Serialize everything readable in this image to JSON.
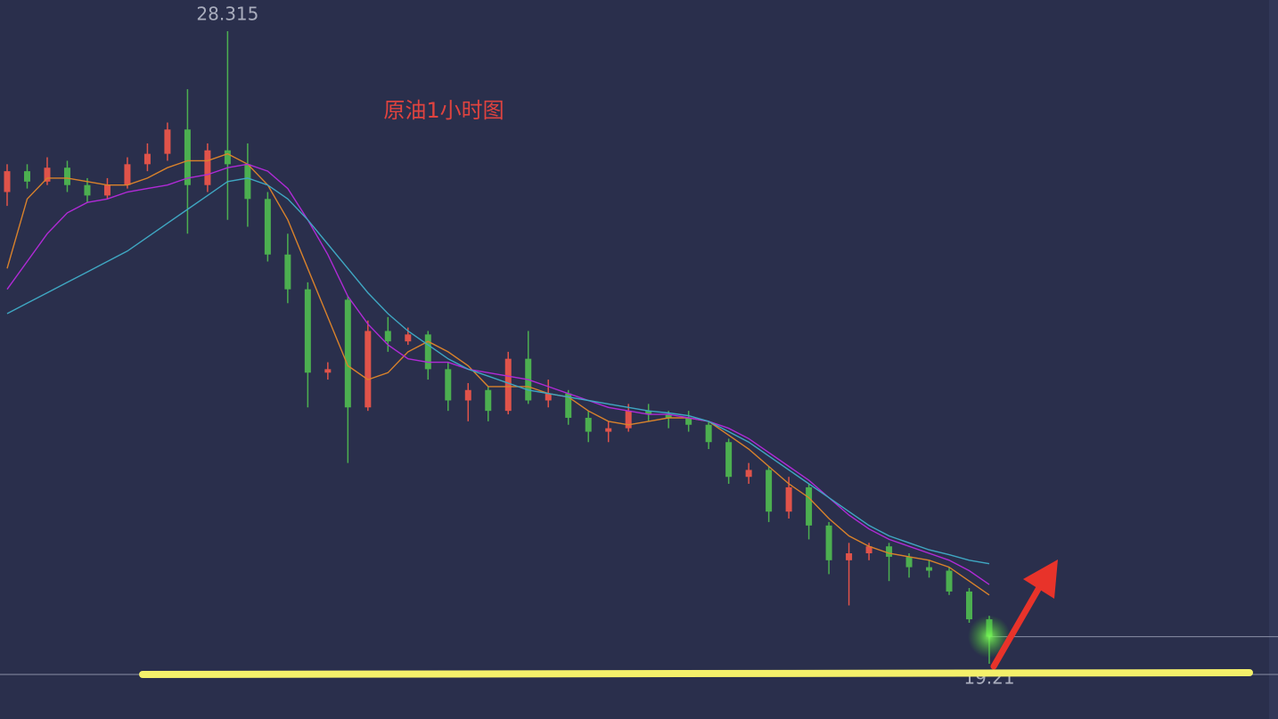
{
  "chart_data": {
    "type": "candlestick",
    "title": "原油1小时图",
    "open": [
      26.0,
      26.3,
      26.15,
      26.35,
      26.1,
      25.95,
      26.1,
      26.4,
      26.55,
      26.9,
      26.1,
      26.6,
      26.4,
      25.9,
      25.1,
      24.6,
      23.4,
      24.45,
      22.9,
      24.0,
      23.85,
      23.95,
      23.45,
      23.0,
      23.15,
      22.85,
      23.6,
      23.0,
      23.1,
      22.75,
      22.55,
      22.6,
      22.85,
      22.8,
      22.75,
      22.65,
      22.4,
      21.9,
      22.0,
      21.4,
      21.75,
      21.2,
      20.7,
      20.8,
      20.9,
      20.75,
      20.6,
      20.55,
      20.25,
      19.85
    ],
    "high": [
      26.4,
      26.4,
      26.5,
      26.45,
      26.2,
      26.2,
      26.5,
      26.7,
      27.0,
      27.48,
      26.7,
      28.315,
      26.7,
      26.0,
      25.4,
      24.7,
      23.55,
      24.5,
      24.15,
      24.2,
      24.05,
      24.0,
      23.55,
      23.25,
      23.2,
      23.7,
      24.0,
      23.3,
      23.15,
      22.85,
      22.7,
      22.95,
      22.95,
      22.85,
      22.85,
      22.7,
      22.45,
      22.1,
      22.05,
      21.9,
      21.8,
      21.25,
      20.95,
      20.95,
      20.95,
      20.8,
      20.7,
      20.6,
      20.3,
      19.9
    ],
    "low": [
      25.8,
      26.05,
      26.1,
      26.0,
      25.85,
      25.9,
      26.05,
      26.3,
      26.45,
      25.4,
      26.0,
      25.6,
      25.5,
      25.0,
      24.4,
      22.9,
      23.3,
      22.1,
      22.85,
      23.7,
      23.8,
      23.3,
      22.85,
      22.7,
      22.7,
      22.8,
      22.95,
      22.9,
      22.65,
      22.4,
      22.4,
      22.55,
      22.7,
      22.6,
      22.55,
      22.3,
      21.8,
      21.8,
      21.25,
      21.3,
      21.0,
      20.5,
      20.05,
      20.7,
      20.4,
      20.45,
      20.45,
      20.2,
      19.8,
      19.21
    ],
    "close": [
      26.3,
      26.15,
      26.35,
      26.1,
      25.95,
      26.1,
      26.4,
      26.55,
      26.9,
      26.1,
      26.6,
      26.4,
      25.9,
      25.1,
      24.6,
      23.4,
      23.45,
      22.9,
      24.0,
      23.85,
      23.95,
      23.45,
      23.0,
      23.15,
      22.85,
      23.6,
      23.0,
      23.1,
      22.75,
      22.55,
      22.6,
      22.85,
      22.8,
      22.75,
      22.65,
      22.4,
      21.9,
      22.0,
      21.4,
      21.75,
      21.2,
      20.7,
      20.8,
      20.9,
      20.75,
      20.6,
      20.55,
      20.25,
      19.85,
      19.6
    ],
    "up_color": "#e0534a",
    "down_color": "#4caf50",
    "moving_averages": [
      {
        "color": "#d9822b",
        "values": [
          24.9,
          25.9,
          26.2,
          26.2,
          26.15,
          26.1,
          26.1,
          26.2,
          26.35,
          26.45,
          26.45,
          26.55,
          26.4,
          26.1,
          25.6,
          24.9,
          24.2,
          23.5,
          23.3,
          23.4,
          23.7,
          23.85,
          23.7,
          23.5,
          23.2,
          23.2,
          23.2,
          23.1,
          23.05,
          22.85,
          22.7,
          22.65,
          22.7,
          22.75,
          22.75,
          22.7,
          22.5,
          22.3,
          22.05,
          21.8,
          21.6,
          21.3,
          21.05,
          20.9,
          20.8,
          20.75,
          20.7,
          20.6,
          20.4,
          20.2
        ]
      },
      {
        "color": "#b02ad6",
        "values": [
          24.6,
          25.0,
          25.4,
          25.7,
          25.85,
          25.9,
          26.0,
          26.05,
          26.1,
          26.2,
          26.25,
          26.35,
          26.4,
          26.3,
          26.05,
          25.6,
          25.1,
          24.5,
          24.1,
          23.8,
          23.6,
          23.55,
          23.55,
          23.45,
          23.4,
          23.35,
          23.3,
          23.2,
          23.1,
          23.0,
          22.9,
          22.85,
          22.8,
          22.8,
          22.75,
          22.7,
          22.6,
          22.45,
          22.25,
          22.05,
          21.85,
          21.6,
          21.35,
          21.15,
          21.0,
          20.9,
          20.8,
          20.7,
          20.55,
          20.35
        ]
      },
      {
        "color": "#3fa7c2",
        "values": [
          24.25,
          24.4,
          24.55,
          24.7,
          24.85,
          25.0,
          25.15,
          25.35,
          25.55,
          25.75,
          25.95,
          26.15,
          26.2,
          26.1,
          25.9,
          25.6,
          25.25,
          24.9,
          24.55,
          24.25,
          24.0,
          23.8,
          23.6,
          23.45,
          23.35,
          23.25,
          23.15,
          23.1,
          23.05,
          23.0,
          22.95,
          22.9,
          22.85,
          22.82,
          22.78,
          22.7,
          22.55,
          22.4,
          22.2,
          22.0,
          21.8,
          21.6,
          21.4,
          21.2,
          21.05,
          20.95,
          20.85,
          20.78,
          20.7,
          20.65
        ]
      }
    ],
    "max_label": 28.315,
    "min_label": 19.21
  }
}
